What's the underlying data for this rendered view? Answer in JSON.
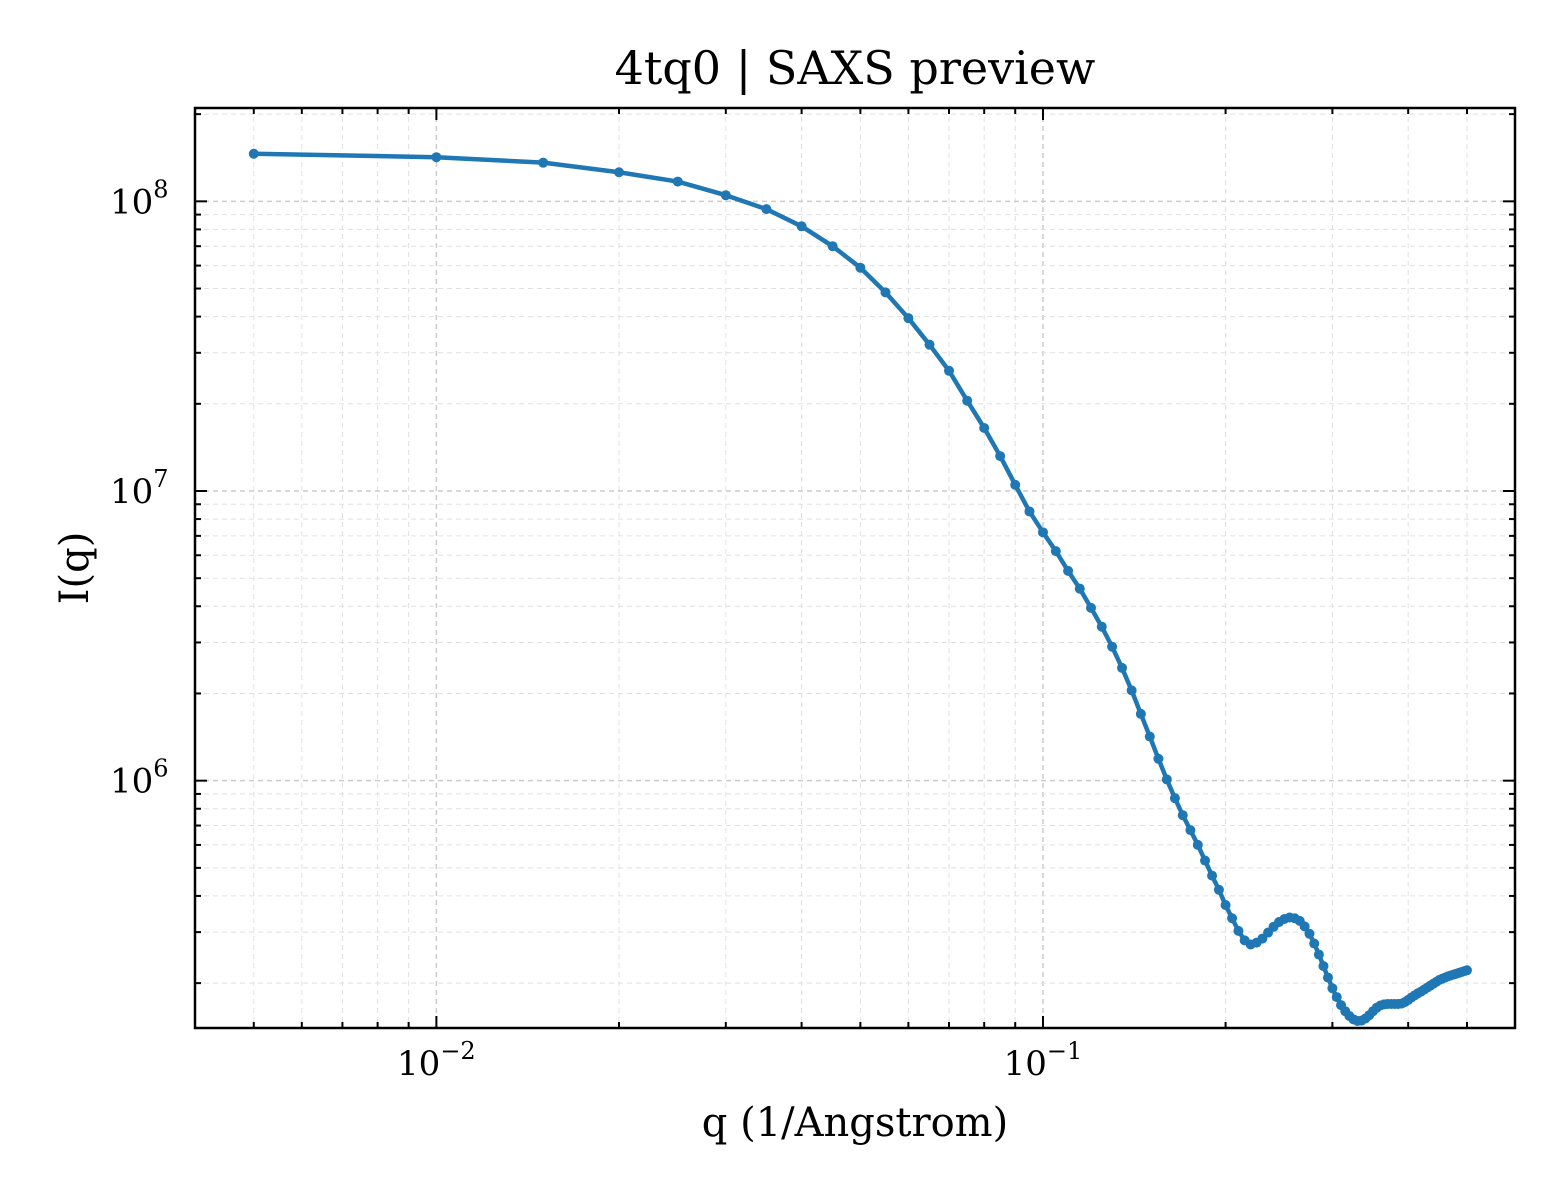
{
  "chart_data": {
    "type": "line",
    "title": "4tq0 | SAXS preview",
    "xlabel": "q (1/Angstrom)",
    "ylabel": "I(q)",
    "xscale": "log",
    "yscale": "log",
    "xlim": [
      0.004,
      0.6
    ],
    "ylim": [
      140000,
      210000000
    ],
    "grid": true,
    "xticks": [
      {
        "base": "10",
        "exp": "−2",
        "value": 0.01
      },
      {
        "base": "10",
        "exp": "−1",
        "value": 0.1
      }
    ],
    "yticks": [
      {
        "base": "10",
        "exp": "6",
        "value": 1000000
      },
      {
        "base": "10",
        "exp": "7",
        "value": 10000000
      },
      {
        "base": "10",
        "exp": "8",
        "value": 100000000
      }
    ],
    "color": "#1f77b4",
    "series": [
      {
        "x": [
          0.005,
          0.01,
          0.015,
          0.02,
          0.025,
          0.03,
          0.035,
          0.04,
          0.045,
          0.05,
          0.055,
          0.06,
          0.065,
          0.07,
          0.075,
          0.08,
          0.085,
          0.09,
          0.095,
          0.1,
          0.105,
          0.11,
          0.115,
          0.12,
          0.125,
          0.13,
          0.135,
          0.14,
          0.145,
          0.15,
          0.155,
          0.16,
          0.165,
          0.17,
          0.175,
          0.18,
          0.185,
          0.19,
          0.195,
          0.2,
          0.205,
          0.21,
          0.215,
          0.22,
          0.225,
          0.23,
          0.235,
          0.24,
          0.245,
          0.25,
          0.255,
          0.26,
          0.265,
          0.27,
          0.275,
          0.28,
          0.285,
          0.29,
          0.295,
          0.3,
          0.305,
          0.31,
          0.315,
          0.32,
          0.325,
          0.33,
          0.335,
          0.34,
          0.345,
          0.35,
          0.355,
          0.36,
          0.365,
          0.37,
          0.375,
          0.38,
          0.385,
          0.39,
          0.395,
          0.4,
          0.405,
          0.41,
          0.415,
          0.42,
          0.425,
          0.43,
          0.435,
          0.44,
          0.445,
          0.45,
          0.455,
          0.46,
          0.465,
          0.47,
          0.475,
          0.48,
          0.485,
          0.49,
          0.495,
          0.5
        ],
        "y": [
          146000000,
          142000000,
          136000000,
          126000000,
          117000000,
          105000000,
          94000000,
          82000000,
          70000000,
          59000000,
          48500000,
          39500000,
          32000000,
          26000000,
          20500000,
          16500000,
          13200000,
          10500000,
          8500000,
          7200000,
          6200000,
          5300000,
          4600000,
          3950000,
          3400000,
          2900000,
          2450000,
          2050000,
          1700000,
          1420000,
          1190000,
          1010000,
          870000,
          760000,
          675000,
          600000,
          530000,
          470000,
          420000,
          372000,
          335000,
          303000,
          281000,
          272000,
          276000,
          285000,
          299000,
          313000,
          325000,
          333000,
          337000,
          335000,
          328000,
          314000,
          296000,
          274000,
          251000,
          229000,
          209000,
          192000,
          179000,
          168000,
          160000,
          154000,
          150000,
          148000,
          148500,
          151000,
          155000,
          160000,
          164500,
          167500,
          169000,
          169500,
          169500,
          169500,
          169500,
          170000,
          172000,
          175000,
          178500,
          181500,
          184500,
          187000,
          190000,
          193000,
          196000,
          199000,
          202000,
          205000,
          207000,
          209000,
          211000,
          212500,
          214000,
          215500,
          217000,
          218500,
          220000,
          221500
        ]
      }
    ]
  }
}
